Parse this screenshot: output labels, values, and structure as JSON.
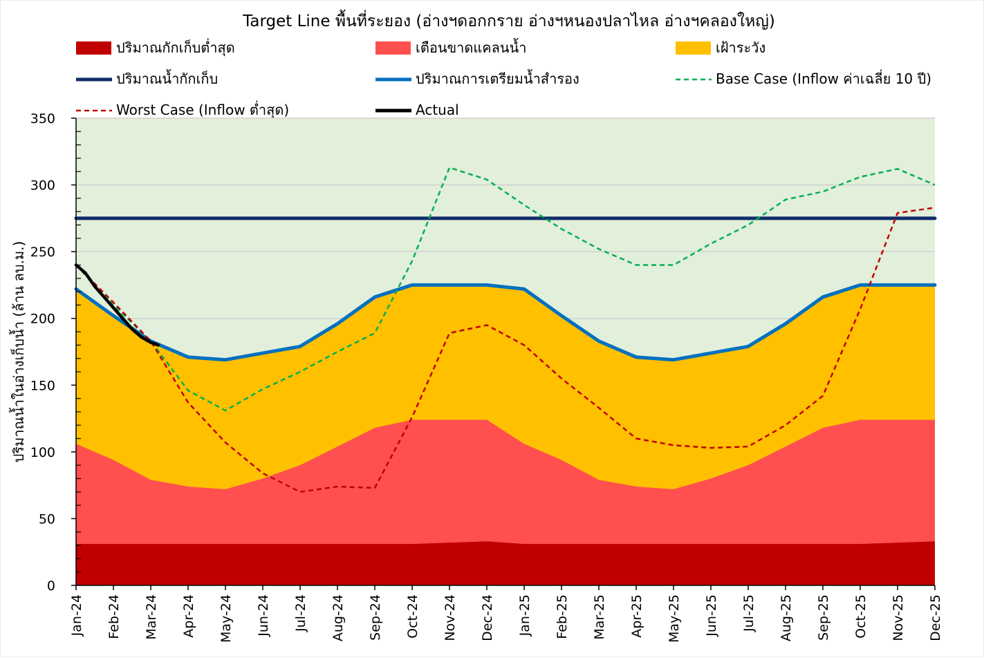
{
  "chart_data": {
    "type": "area",
    "title": "Target Line พื้นที่ระยอง (อ่างฯดอกกราย อ่างฯหนองปลาไหล อ่างฯคลองใหญ่)",
    "ylabel": "ปริมาณน้ำในอ่างเก็บน้ำ (ล้าน ลบ.ม.)",
    "xlabel": "",
    "ylim": [
      0,
      350
    ],
    "yticks": [
      0,
      50,
      100,
      150,
      200,
      250,
      300,
      350
    ],
    "categories": [
      "Jan-24",
      "Feb-24",
      "Mar-24",
      "Apr-24",
      "May-24",
      "Jun-24",
      "Jul-24",
      "Aug-24",
      "Sep-24",
      "Oct-24",
      "Nov-24",
      "Dec-24",
      "Jan-25",
      "Feb-25",
      "Mar-25",
      "Apr-25",
      "May-25",
      "Jun-25",
      "Jul-25",
      "Aug-25",
      "Sep-25",
      "Oct-25",
      "Nov-25",
      "Dec-25"
    ],
    "grid": true,
    "legend_position": "top",
    "series": [
      {
        "name": "ปริมาณกักเก็บต่ำสุด",
        "kind": "area",
        "color": "#C00000",
        "values": [
          31,
          31,
          31,
          31,
          31,
          31,
          31,
          31,
          31,
          31,
          32,
          33,
          31,
          31,
          31,
          31,
          31,
          31,
          31,
          31,
          31,
          31,
          32,
          33
        ]
      },
      {
        "name": "เตือนขาดแคลนน้ำ",
        "kind": "area",
        "color": "#FF4F4F",
        "values": [
          106,
          94,
          79,
          74,
          72,
          80,
          90,
          104,
          118,
          124,
          124,
          124,
          106,
          94,
          79,
          74,
          72,
          80,
          90,
          104,
          118,
          124,
          124,
          124
        ]
      },
      {
        "name": "เฝ้าระวัง",
        "kind": "area",
        "color": "#FFC000",
        "values": [
          222,
          202,
          183,
          171,
          169,
          174,
          179,
          196,
          216,
          225,
          225,
          225,
          222,
          202,
          183,
          171,
          169,
          174,
          179,
          196,
          216,
          225,
          225,
          225
        ]
      },
      {
        "name": "ปริมาณน้ำกักเก็บ",
        "kind": "line",
        "color": "#0F2D69",
        "values": [
          275,
          275,
          275,
          275,
          275,
          275,
          275,
          275,
          275,
          275,
          275,
          275,
          275,
          275,
          275,
          275,
          275,
          275,
          275,
          275,
          275,
          275,
          275,
          275
        ]
      },
      {
        "name": "ปริมาณการเตรียมน้ำสำรอง",
        "kind": "line",
        "color": "#0070C0",
        "values": [
          222,
          202,
          183,
          171,
          169,
          174,
          179,
          196,
          216,
          225,
          225,
          225,
          222,
          202,
          183,
          171,
          169,
          174,
          179,
          196,
          216,
          225,
          225,
          225
        ]
      },
      {
        "name": "Base Case (Inflow ค่าเฉลี่ย 10 ปี)",
        "kind": "dashed",
        "color": "#00B050",
        "x": [
          0,
          1,
          2,
          3,
          4,
          5,
          6,
          7,
          8,
          9,
          10,
          11,
          12,
          13,
          14,
          15,
          16,
          17,
          18,
          19,
          20,
          21,
          22,
          23
        ],
        "values": [
          240,
          210,
          183,
          146,
          131,
          147,
          160,
          175,
          189,
          243,
          313,
          304,
          285,
          267,
          252,
          240,
          240,
          256,
          270,
          289,
          295,
          306,
          312,
          300
        ]
      },
      {
        "name": "Worst Case (Inflow ต่ำสุด)",
        "kind": "dashed",
        "color": "#C00000",
        "x": [
          0,
          1,
          2,
          3,
          4,
          5,
          6,
          7,
          8,
          9,
          10,
          11,
          12,
          13,
          14,
          15,
          16,
          17,
          18,
          19,
          20,
          21,
          22,
          23
        ],
        "values": [
          240,
          212,
          183,
          137,
          107,
          84,
          70,
          74,
          73,
          126,
          189,
          195,
          180,
          155,
          133,
          110,
          105,
          103,
          104,
          120,
          142,
          207,
          279,
          283
        ]
      },
      {
        "name": "Actual",
        "kind": "line",
        "color": "#000000",
        "x": [
          0,
          0.25,
          0.5,
          0.75,
          1,
          1.25,
          1.5,
          1.75,
          2,
          2.2
        ],
        "values": [
          240,
          234,
          224,
          216,
          208,
          200,
          192,
          186,
          182,
          180
        ]
      }
    ],
    "plot_background": "#E2EFDA"
  }
}
